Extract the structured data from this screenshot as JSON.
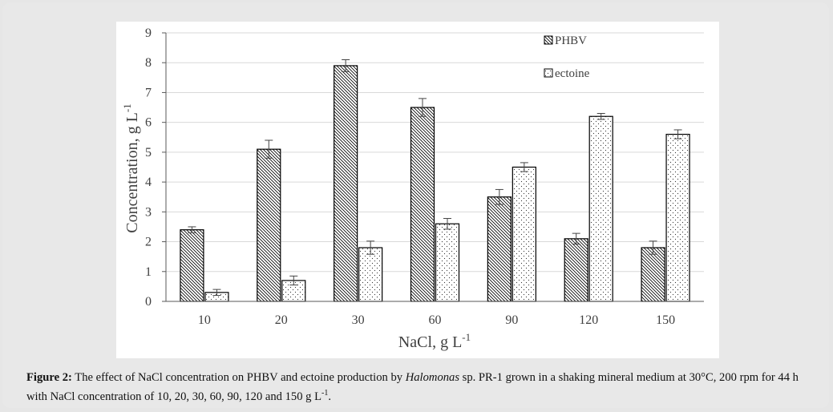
{
  "chart_data": {
    "type": "bar",
    "categories": [
      "10",
      "20",
      "30",
      "60",
      "90",
      "120",
      "150"
    ],
    "series": [
      {
        "name": "PHBV",
        "values": [
          2.4,
          5.1,
          7.9,
          6.5,
          3.5,
          2.1,
          1.8
        ],
        "errors": [
          0.1,
          0.3,
          0.2,
          0.3,
          0.25,
          0.18,
          0.22
        ],
        "pattern": "diagonal-hatch"
      },
      {
        "name": "ectoine",
        "values": [
          0.3,
          0.7,
          1.8,
          2.6,
          4.5,
          6.2,
          5.6
        ],
        "errors": [
          0.1,
          0.15,
          0.22,
          0.18,
          0.15,
          0.1,
          0.15
        ],
        "pattern": "dots"
      }
    ],
    "ylim": [
      0,
      9
    ],
    "yticks": [
      "0",
      "1",
      "2",
      "3",
      "4",
      "5",
      "6",
      "7",
      "8",
      "9"
    ],
    "xlabel": "NaCl, g L",
    "xlabel_sup": "-1",
    "ylabel": "Concentration, g L",
    "ylabel_sup": "-1",
    "grid": true,
    "legend_position": "top-right"
  },
  "caption": {
    "lead": "Figure 2:",
    "text_before": " The effect of NaCl concentration on PHBV and ectoine production by ",
    "organism": "Halomonas",
    "text_after": " sp. PR-1 grown in a shaking mineral medium at 30°C, 200 rpm for 44 h with NaCl concentration of 10, 20, 30, 60, 90, 120 and 150 g L",
    "sup": "-1",
    "end": "."
  },
  "colors": {
    "bar_stroke": "#000000",
    "grid": "#d9d9d9",
    "axis": "#595959",
    "text": "#404040"
  }
}
